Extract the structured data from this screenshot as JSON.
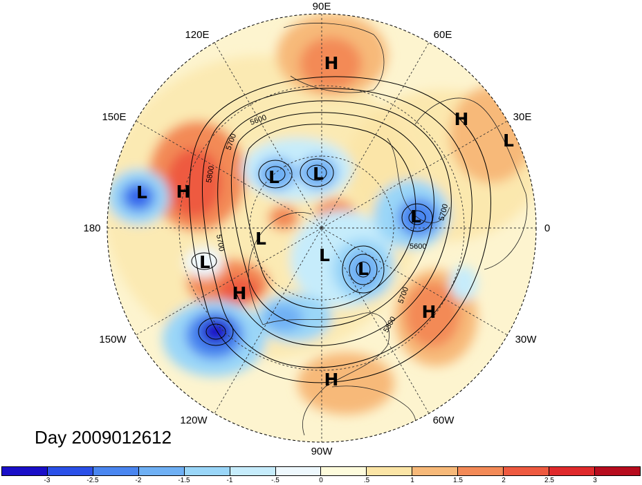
{
  "title": "Day 2009012612",
  "longitude_labels": [
    "90E",
    "60E",
    "30E",
    "0",
    "30W",
    "60W",
    "90W",
    "120W",
    "150W",
    "180",
    "150E",
    "120E"
  ],
  "contour_labels": [
    "5600",
    "5700",
    "5800",
    "5700",
    "5700",
    "5800",
    "5600",
    "5700",
    "5800"
  ],
  "systems": [
    {
      "name": "H"
    },
    {
      "name": "H"
    },
    {
      "name": "L"
    },
    {
      "name": "L"
    },
    {
      "name": "L"
    },
    {
      "name": "L"
    },
    {
      "name": "H"
    },
    {
      "name": "L"
    },
    {
      "name": "L"
    },
    {
      "name": "L"
    },
    {
      "name": "L"
    },
    {
      "name": "H"
    },
    {
      "name": "L"
    },
    {
      "name": "H"
    },
    {
      "name": "H"
    }
  ],
  "colorbar": {
    "colors": [
      "#1a0fc8",
      "#2b50e8",
      "#4a86f0",
      "#6fb0f4",
      "#9ad6f8",
      "#c6ecfb",
      "#eef8fd",
      "#fdfbdc",
      "#fbe5a6",
      "#f7b979",
      "#f38a57",
      "#ee5a40",
      "#e02a2c",
      "#b70c1e"
    ],
    "ticks": [
      "-3",
      "-2.5",
      "-2",
      "-1.5",
      "-1",
      "-.5",
      "0",
      ".5",
      "1",
      "1.5",
      "2",
      "2.5",
      "3"
    ]
  }
}
